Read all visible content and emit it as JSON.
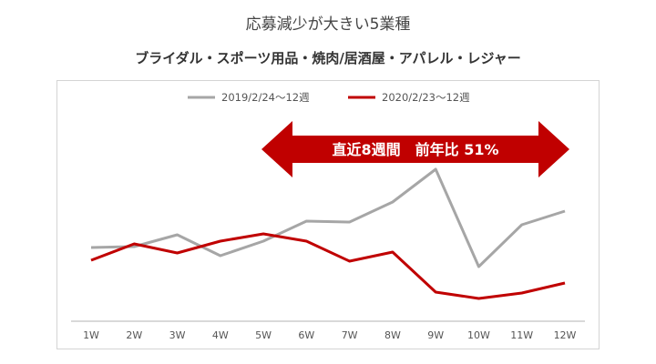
{
  "chart_data": {
    "type": "line",
    "title": "応募減少が大きい5業種",
    "subtitle": "ブライダル・スポーツ用品・焼肉/居酒屋・アパレル・レジャー",
    "categories": [
      "1W",
      "2W",
      "3W",
      "4W",
      "5W",
      "6W",
      "7W",
      "8W",
      "9W",
      "10W",
      "11W",
      "12W"
    ],
    "series": [
      {
        "name": "2019/2/24〜12週",
        "color": "#a6a6a6",
        "values": [
          81,
          82,
          95,
          72,
          88,
          110,
          109,
          131,
          167,
          60,
          106,
          121
        ]
      },
      {
        "name": "2020/2/23〜12週",
        "color": "#c00000",
        "values": [
          67,
          85,
          75,
          88,
          96,
          88,
          66,
          76,
          32,
          25,
          31,
          42
        ]
      }
    ],
    "ylim": [
      0,
      180
    ],
    "y_axis_shown": false,
    "grid": false,
    "legend": "top",
    "annotation": {
      "text": "直近8週間　前年比 51%",
      "color": "#c00000",
      "span": [
        "5W",
        "12W"
      ]
    }
  }
}
